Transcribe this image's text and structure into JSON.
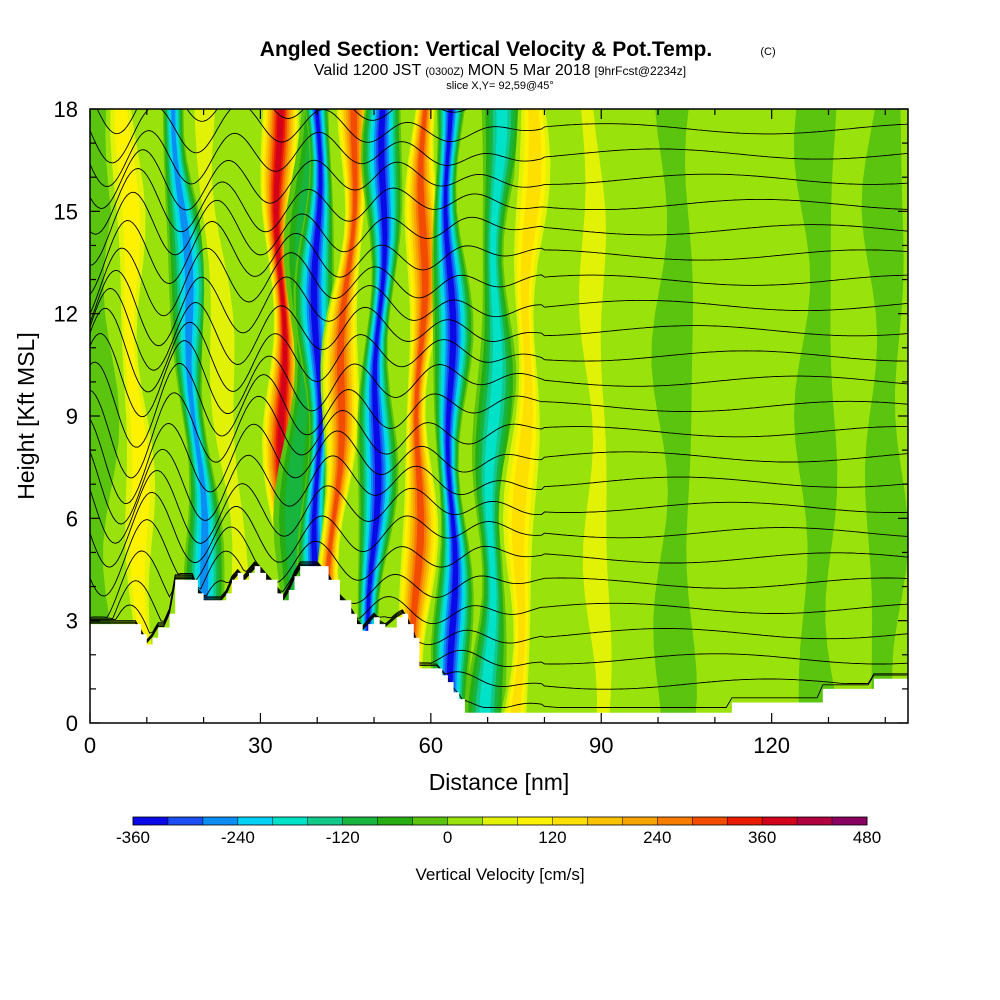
{
  "header": {
    "title": "Angled Section: Vertical Velocity & Pot.Temp.",
    "title_unit": "(C)",
    "valid_prefix": "Valid 1200 JST",
    "valid_utc": "(0300Z)",
    "valid_date": "MON 5 Mar 2018",
    "valid_fcst": "[9hrFcst@2234z]",
    "slice": "slice X,Y= 92,59@45°"
  },
  "chart_data": {
    "type": "heatmap",
    "xlabel": "Distance [nm]",
    "ylabel": "Height [Kft MSL]",
    "xlim": [
      0,
      144
    ],
    "ylim": [
      0,
      18
    ],
    "x_ticks": [
      0,
      30,
      60,
      90,
      120
    ],
    "y_ticks": [
      0,
      3,
      6,
      9,
      12,
      15,
      18
    ],
    "colorbar": {
      "label": "Vertical Velocity [cm/s]",
      "range": [
        -360,
        480
      ],
      "bin_width": 40,
      "tick_values": [
        -360,
        -240,
        -120,
        0,
        120,
        240,
        360,
        480
      ],
      "colors": [
        "#0a0ae8",
        "#1a4ef2",
        "#0b8ef2",
        "#00d2f6",
        "#00e2c8",
        "#12c98a",
        "#17b43e",
        "#27ad14",
        "#5ac40e",
        "#9ae20c",
        "#e2f206",
        "#fff200",
        "#fde000",
        "#f8c200",
        "#f8a400",
        "#f77d00",
        "#f24c00",
        "#ea1a00",
        "#d2001a",
        "#b00040",
        "#8a0060"
      ]
    },
    "terrain_kft": [
      [
        0,
        2.9
      ],
      [
        5,
        2.9
      ],
      [
        8,
        2.9
      ],
      [
        9,
        2.6
      ],
      [
        10,
        2.3
      ],
      [
        11,
        2.5
      ],
      [
        12,
        2.8
      ],
      [
        13,
        2.8
      ],
      [
        14,
        3.2
      ],
      [
        15,
        4.2
      ],
      [
        18,
        4.2
      ],
      [
        19,
        3.8
      ],
      [
        20,
        3.6
      ],
      [
        23,
        3.6
      ],
      [
        24,
        3.8
      ],
      [
        25,
        4.2
      ],
      [
        26,
        4.4
      ],
      [
        27,
        4.2
      ],
      [
        28,
        4.4
      ],
      [
        29,
        4.6
      ],
      [
        30,
        4.4
      ],
      [
        31,
        4.2
      ],
      [
        33,
        3.8
      ],
      [
        34,
        3.6
      ],
      [
        35,
        3.9
      ],
      [
        36,
        4.3
      ],
      [
        37,
        4.6
      ],
      [
        40,
        4.6
      ],
      [
        42,
        4.2
      ],
      [
        44,
        3.6
      ],
      [
        46,
        3.2
      ],
      [
        47,
        2.9
      ],
      [
        48,
        2.7
      ],
      [
        49,
        2.9
      ],
      [
        50,
        3.1
      ],
      [
        51,
        2.9
      ],
      [
        52,
        2.8
      ],
      [
        54,
        3.1
      ],
      [
        55,
        3.2
      ],
      [
        56,
        2.9
      ],
      [
        57,
        2.5
      ],
      [
        58,
        1.6
      ],
      [
        61,
        1.6
      ],
      [
        62,
        1.4
      ],
      [
        63,
        1.2
      ],
      [
        64,
        0.9
      ],
      [
        65,
        0.7
      ],
      [
        66,
        0.3
      ],
      [
        80,
        0.3
      ],
      [
        95,
        0.3
      ],
      [
        112,
        0.3
      ],
      [
        113,
        0.6
      ],
      [
        120,
        0.6
      ],
      [
        128,
        0.6
      ],
      [
        129,
        1.0
      ],
      [
        137,
        1.0
      ],
      [
        138,
        1.3
      ],
      [
        144,
        1.3
      ]
    ],
    "vertical_velocity_bands": [
      {
        "x_base": 1,
        "x_top": 1,
        "value": -60
      },
      {
        "x_base": 10,
        "x_top": 6,
        "value": 130
      },
      {
        "x_base": 22,
        "x_top": 15,
        "value": -280
      },
      {
        "x_base": 28,
        "x_top": 20,
        "value": 110
      },
      {
        "x_base": 35,
        "x_top": 33,
        "value": 400
      },
      {
        "x_base": 35,
        "x_top": 39,
        "value": -150
      },
      {
        "x_base": 40,
        "x_top": 40,
        "value": -360
      },
      {
        "x_base": 41,
        "x_top": 47,
        "value": 340
      },
      {
        "x_base": 49,
        "x_top": 52,
        "value": -360
      },
      {
        "x_base": 57,
        "x_top": 59,
        "value": 350
      },
      {
        "x_base": 64,
        "x_top": 63,
        "value": -360
      },
      {
        "x_base": 70,
        "x_top": 72,
        "value": -200
      },
      {
        "x_base": 75,
        "x_top": 78,
        "value": 190
      },
      {
        "x_base": 90,
        "x_top": 88,
        "value": 110
      },
      {
        "x_base": 103,
        "x_top": 103,
        "value": -50
      },
      {
        "x_base": 128,
        "x_top": 128,
        "value": -50
      },
      {
        "x_base": 140,
        "x_top": 140,
        "value": -45
      }
    ],
    "pot_temp_contour_levels_c": [
      2,
      4,
      6,
      8,
      10,
      12,
      14,
      16,
      18,
      20,
      22,
      24,
      26,
      28,
      30,
      32,
      34,
      36,
      38,
      40,
      42,
      44,
      46,
      48,
      50
    ]
  }
}
